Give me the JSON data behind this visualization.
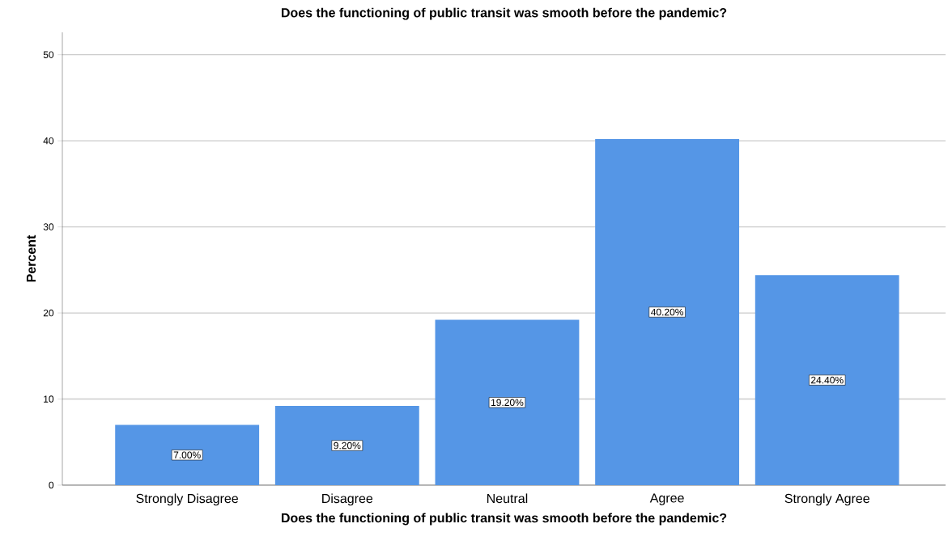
{
  "chart_data": {
    "type": "bar",
    "title": "Does the functioning of public transit was smooth before the pandemic?",
    "xlabel": "Does the functioning of public transit was smooth before the pandemic?",
    "ylabel": "Percent",
    "categories": [
      "Strongly Disagree",
      "Disagree",
      "Neutral",
      "Agree",
      "Strongly Agree"
    ],
    "values": [
      7.0,
      9.2,
      19.2,
      40.2,
      24.4
    ],
    "value_labels": [
      "7.00%",
      "9.20%",
      "19.20%",
      "40.20%",
      "24.40%"
    ],
    "color": "#5596e6",
    "ylim": [
      0,
      52.6
    ],
    "yticks": [
      0,
      10,
      20,
      30,
      40,
      50
    ],
    "grid": "y"
  }
}
